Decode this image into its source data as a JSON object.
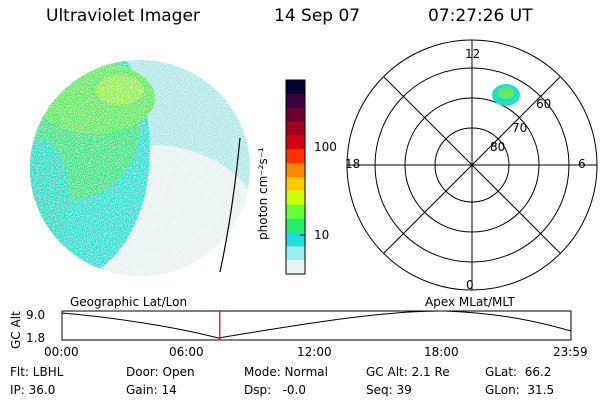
{
  "header": {
    "instrument": "Ultraviolet Imager",
    "date": "14 Sep 07",
    "time": "07:27:26 UT"
  },
  "colorbar": {
    "label": "photon cm⁻²s⁻¹",
    "ticks": [
      "100",
      "10"
    ],
    "colors": [
      "#000033",
      "#3a0040",
      "#6b0030",
      "#a00020",
      "#d80010",
      "#ff3300",
      "#ff8800",
      "#ffcc00",
      "#ccff00",
      "#66ff33",
      "#22ee66",
      "#22dddd",
      "#99eeee",
      "#e6f4f4"
    ]
  },
  "polar_plot": {
    "mlt_labels": [
      "12",
      "18",
      "6",
      "0"
    ],
    "lat_labels": [
      "60",
      "70",
      "80"
    ]
  },
  "timeline": {
    "left_label": "Geographic Lat/Lon",
    "right_label": "Apex MLat/MLT",
    "y_axis_label": "GC Alt",
    "y_ticks": [
      "9.0",
      "1.8"
    ],
    "x_ticks": [
      "00:00",
      "06:00",
      "12:00",
      "18:00",
      "23:59"
    ],
    "current_time_fraction": 0.31
  },
  "status": {
    "flt": "Flt: LBHL",
    "ip": "IP: 36.0",
    "door": "Door: Open",
    "gain": "Gain: 14",
    "mode": "Mode: Normal",
    "dsp": "Dsp:   -0.0",
    "gcalt": "GC Alt: 2.1 Re",
    "seq": "Seq: 39",
    "glat": "GLat:  66.2",
    "glon": "GLon:  31.5"
  }
}
